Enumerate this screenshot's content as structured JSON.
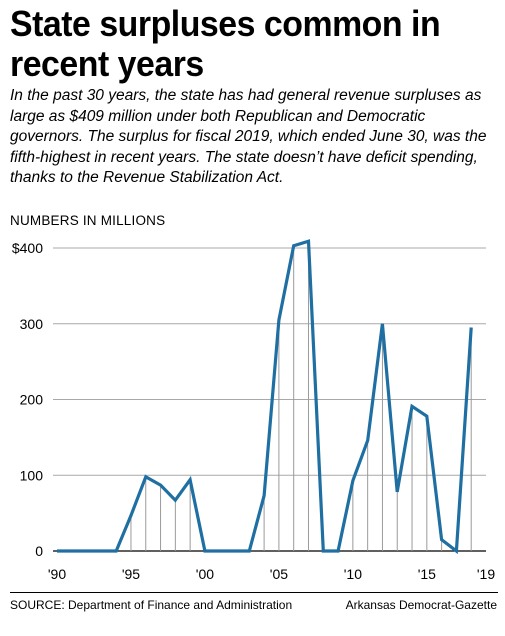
{
  "headline": "State surpluses common in recent years",
  "subhead": "In the past 30 years, the state has had general revenue surpluses as large as $409 million under both Republican and Democratic governors. The surplus for fiscal 2019, which ended June 30, was the fifth-highest in recent years. The state doesn’t have deficit spending, thanks to the Revenue Stabilization Act.",
  "units_label": "NUMBERS IN MILLIONS",
  "source": "SOURCE: Department of Finance and Administration",
  "credit": "Arkansas Democrat-Gazette",
  "chart_data": {
    "type": "line",
    "x": [
      1990,
      1991,
      1992,
      1993,
      1994,
      1995,
      1996,
      1997,
      1998,
      1999,
      2000,
      2001,
      2002,
      2003,
      2004,
      2005,
      2006,
      2007,
      2008,
      2009,
      2010,
      2011,
      2012,
      2013,
      2014,
      2015,
      2016,
      2017,
      2018,
      2019
    ],
    "series": [
      {
        "values": [
          0,
          0,
          0,
          0,
          0,
          47,
          98,
          87,
          67,
          94,
          0,
          0,
          0,
          0,
          73,
          305,
          403,
          409,
          0,
          0,
          93,
          146,
          300,
          78,
          191,
          178,
          15,
          0,
          295,
          null
        ],
        "color": "#1f6fa3"
      }
    ],
    "x_tick_labels": [
      "'90",
      "'95",
      "'00",
      "'05",
      "'10",
      "'15",
      "'19"
    ],
    "x_tick_values": [
      1990,
      1995,
      2000,
      2005,
      2010,
      2015,
      2019
    ],
    "y_tick_labels": [
      "0",
      "100",
      "200",
      "300",
      "$400"
    ],
    "y_tick_values": [
      0,
      100,
      200,
      300,
      400
    ],
    "xlim": [
      1990,
      2019
    ],
    "ylim": [
      0,
      400
    ],
    "gridlines": "horizontal",
    "drop_lines": true
  }
}
